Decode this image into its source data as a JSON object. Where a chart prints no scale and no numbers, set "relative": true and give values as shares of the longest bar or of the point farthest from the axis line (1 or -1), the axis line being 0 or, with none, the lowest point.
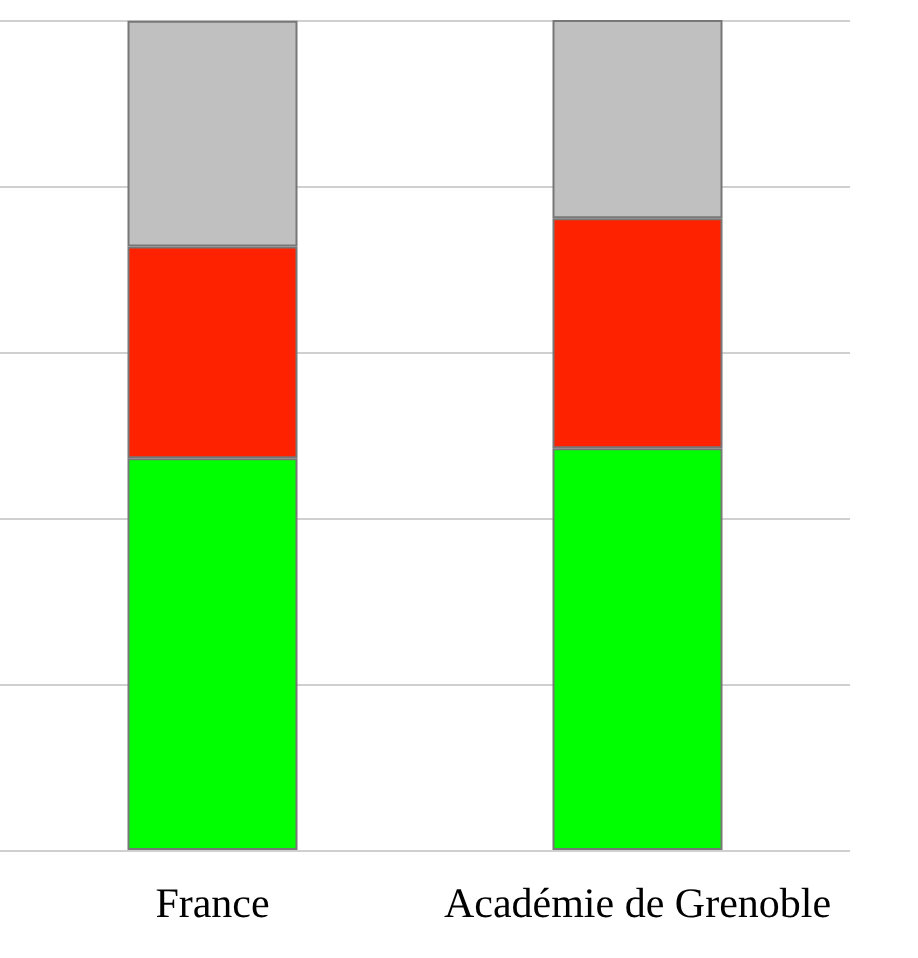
{
  "chart_data": {
    "type": "bar",
    "stacked": true,
    "relative": true,
    "grid": "y",
    "categories": [
      "France",
      "Académie de Grenoble"
    ],
    "series": [
      {
        "color": "#00ff00",
        "values": [
          0.472,
          0.484
        ]
      },
      {
        "color": "#ff2200",
        "values": [
          0.255,
          0.277
        ]
      },
      {
        "color": "#c0c0c0",
        "values": [
          0.272,
          0.239
        ]
      }
    ]
  }
}
